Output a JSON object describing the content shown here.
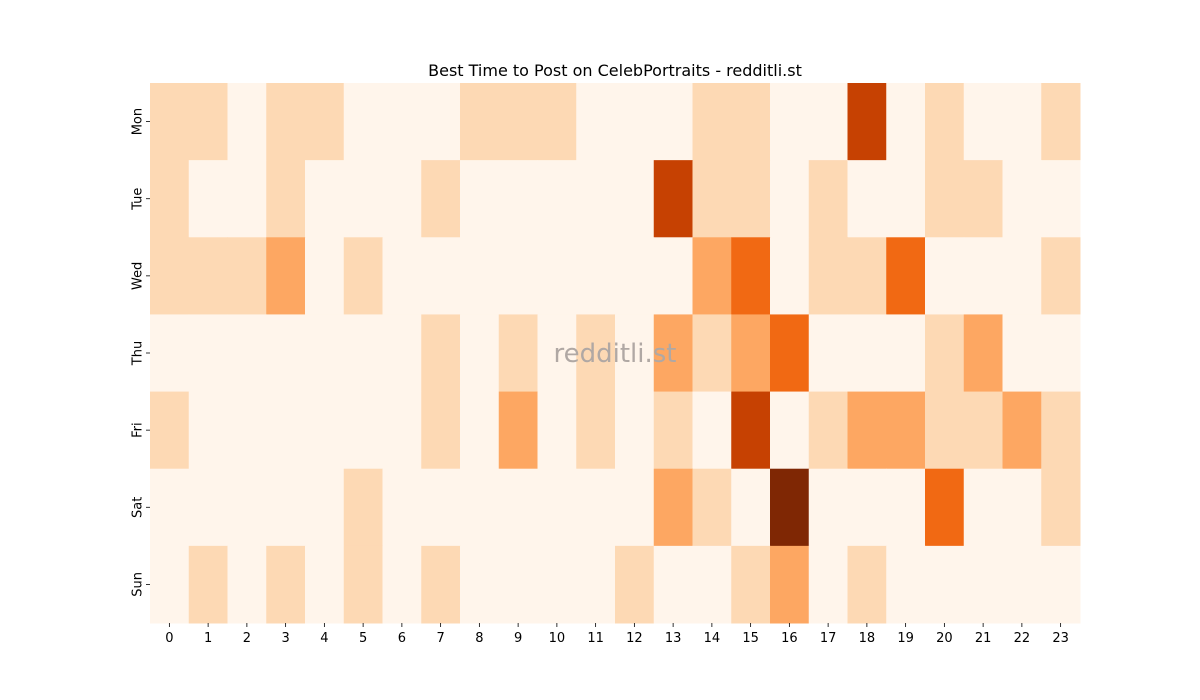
{
  "chart_data": {
    "type": "heatmap",
    "title": "Best Time to Post on CelebPortraits - redditli.st",
    "watermark": "redditli.st",
    "x": [
      "0",
      "1",
      "2",
      "3",
      "4",
      "5",
      "6",
      "7",
      "8",
      "9",
      "10",
      "11",
      "12",
      "13",
      "14",
      "15",
      "16",
      "17",
      "18",
      "19",
      "20",
      "21",
      "22",
      "23"
    ],
    "y": [
      "Mon",
      "Tue",
      "Wed",
      "Thu",
      "Fri",
      "Sat",
      "Sun"
    ],
    "values": [
      [
        1,
        1,
        0,
        1,
        1,
        0,
        0,
        0,
        1,
        1,
        1,
        0,
        0,
        0,
        1,
        1,
        0,
        0,
        4,
        0,
        1,
        0,
        0,
        1
      ],
      [
        1,
        0,
        0,
        1,
        0,
        0,
        0,
        1,
        0,
        0,
        0,
        0,
        0,
        4,
        1,
        1,
        0,
        1,
        0,
        0,
        1,
        1,
        0,
        0
      ],
      [
        1,
        1,
        1,
        2,
        0,
        1,
        0,
        0,
        0,
        0,
        0,
        0,
        0,
        0,
        2,
        3,
        0,
        1,
        1,
        3,
        0,
        0,
        0,
        1
      ],
      [
        0,
        0,
        0,
        0,
        0,
        0,
        0,
        1,
        0,
        1,
        0,
        1,
        0,
        2,
        1,
        2,
        3,
        0,
        0,
        0,
        1,
        2,
        0,
        0
      ],
      [
        1,
        0,
        0,
        0,
        0,
        0,
        0,
        1,
        0,
        2,
        0,
        1,
        0,
        1,
        0,
        4,
        0,
        1,
        2,
        2,
        1,
        1,
        2,
        1
      ],
      [
        0,
        0,
        0,
        0,
        0,
        1,
        0,
        0,
        0,
        0,
        0,
        0,
        0,
        2,
        1,
        0,
        5,
        0,
        0,
        0,
        3,
        0,
        0,
        1
      ],
      [
        0,
        1,
        0,
        1,
        0,
        1,
        0,
        1,
        0,
        0,
        0,
        0,
        1,
        0,
        0,
        1,
        2,
        0,
        1,
        0,
        0,
        0,
        0,
        0
      ]
    ],
    "colors": [
      "#fff5eb",
      "#fdd9b4",
      "#fda762",
      "#f16913",
      "#c64102",
      "#7f2704"
    ],
    "legend": "none",
    "grid": false
  }
}
